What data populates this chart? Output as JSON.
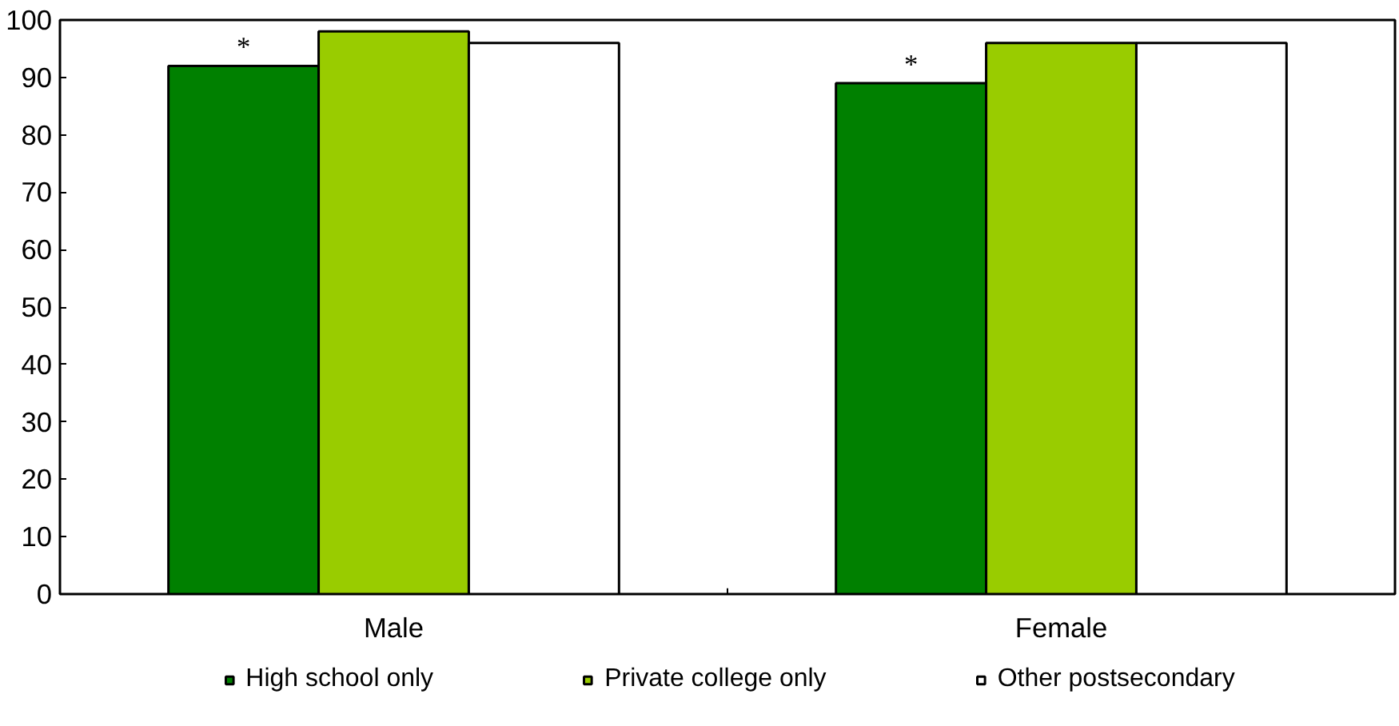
{
  "chart_data": {
    "type": "bar",
    "categories": [
      "Male",
      "Female"
    ],
    "series": [
      {
        "name": "High school only",
        "color": "#008000",
        "values": [
          92,
          89
        ]
      },
      {
        "name": "Private college only",
        "color": "#99cc00",
        "values": [
          98,
          96
        ]
      },
      {
        "name": "Other postsecondary",
        "color": "#ffffff",
        "values": [
          96,
          96
        ]
      }
    ],
    "ylim": [
      0,
      100
    ],
    "yticks": [
      0,
      10,
      20,
      30,
      40,
      50,
      60,
      70,
      80,
      90,
      100
    ],
    "grid": false,
    "legend": "bottom",
    "annotations": [
      "*",
      "*"
    ]
  }
}
